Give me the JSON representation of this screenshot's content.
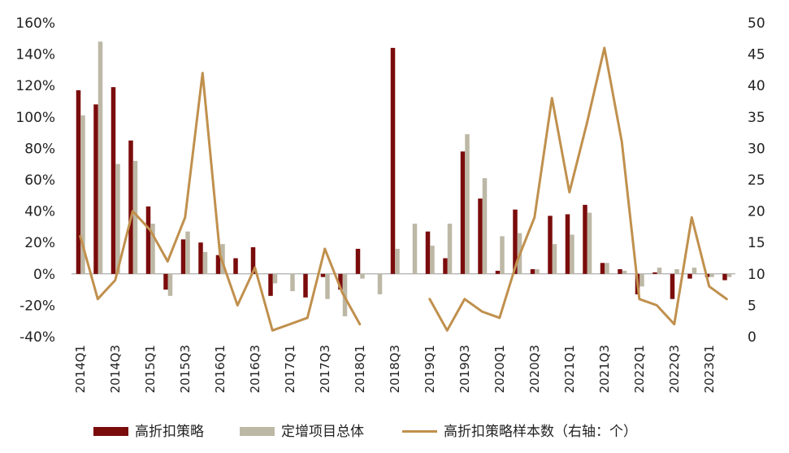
{
  "chart_data": {
    "type": "bar+line",
    "categories": [
      "2014Q1",
      "2014Q2",
      "2014Q3",
      "2014Q4",
      "2015Q1",
      "2015Q2",
      "2015Q3",
      "2015Q4",
      "2016Q1",
      "2016Q2",
      "2016Q3",
      "2016Q4",
      "2017Q1",
      "2017Q2",
      "2017Q3",
      "2017Q4",
      "2018Q1",
      "2018Q2",
      "2018Q3",
      "2018Q4",
      "2019Q1",
      "2019Q2",
      "2019Q3",
      "2019Q4",
      "2020Q1",
      "2020Q2",
      "2020Q3",
      "2020Q4",
      "2021Q1",
      "2021Q2",
      "2021Q3",
      "2021Q4",
      "2022Q1",
      "2022Q2",
      "2022Q3",
      "2022Q4",
      "2023Q1",
      "2023Q2"
    ],
    "x_tick_labels": [
      "2014Q1",
      "2014Q3",
      "2015Q1",
      "2015Q3",
      "2016Q1",
      "2016Q3",
      "2017Q1",
      "2017Q3",
      "2018Q1",
      "2018Q3",
      "2019Q1",
      "2019Q3",
      "2020Q1",
      "2020Q3",
      "2021Q1",
      "2021Q3",
      "2022Q1",
      "2022Q3",
      "2023Q1"
    ],
    "left_axis": {
      "ylim": [
        -40,
        160
      ],
      "ticks": [
        "-40%",
        "-20%",
        "0%",
        "20%",
        "40%",
        "60%",
        "80%",
        "100%",
        "120%",
        "140%",
        "160%"
      ]
    },
    "right_axis": {
      "ylim": [
        0,
        50
      ],
      "ticks": [
        "0",
        "5",
        "10",
        "15",
        "20",
        "25",
        "30",
        "35",
        "40",
        "45",
        "50"
      ]
    },
    "series": [
      {
        "name": "高折扣策略",
        "kind": "bar",
        "axis": "left",
        "color": "#7B0C0C",
        "values": [
          117,
          108,
          119,
          85,
          43,
          -10,
          22,
          20,
          12,
          10,
          17,
          -14,
          null,
          -15,
          -2,
          -10,
          16,
          null,
          144,
          null,
          27,
          10,
          78,
          48,
          2,
          41,
          3,
          37,
          38,
          44,
          7,
          3,
          -13,
          1,
          -16,
          -3,
          -2,
          -4
        ]
      },
      {
        "name": "定增项目总体",
        "kind": "bar",
        "axis": "left",
        "color": "#BDB8A6",
        "values": [
          101,
          148,
          70,
          72,
          32,
          -14,
          27,
          14,
          19,
          null,
          null,
          -6,
          -11,
          null,
          -16,
          -27,
          -3,
          -13,
          16,
          32,
          18,
          32,
          89,
          61,
          24,
          26,
          3,
          19,
          25,
          39,
          7,
          2,
          -8,
          4,
          3,
          4,
          -2,
          -2
        ]
      },
      {
        "name": "高折扣策略样本数（右轴：个）",
        "kind": "line",
        "axis": "right",
        "color": "#C0904D",
        "values": [
          16,
          6,
          9,
          20,
          17,
          12,
          19,
          42,
          13,
          5,
          11,
          1,
          2,
          3,
          14,
          7,
          2,
          null,
          null,
          null,
          6,
          1,
          6,
          4,
          3,
          12,
          19,
          38,
          23,
          34,
          46,
          31,
          6,
          5,
          2,
          19,
          8,
          6
        ]
      }
    ],
    "legend": [
      "高折扣策略",
      "定增项目总体",
      "高折扣策略样本数（右轴：个）"
    ],
    "legend_position": "bottom"
  }
}
